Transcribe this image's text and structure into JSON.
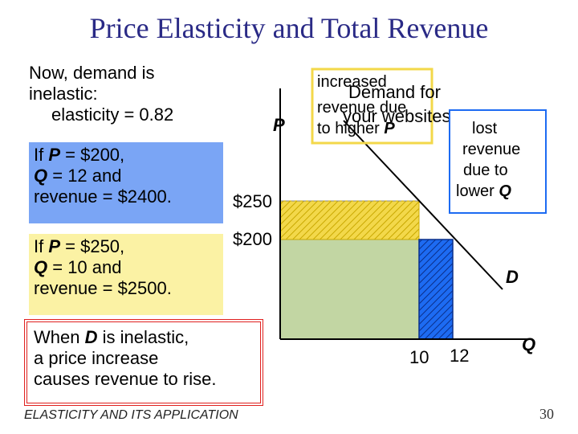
{
  "title": "Price Elasticity and Total Revenue",
  "intro": {
    "line1": "Now, demand is",
    "line2": "inelastic:",
    "line3": "elasticity = 0.82"
  },
  "scenario_low": {
    "line1_a": "If ",
    "line1_p": "P",
    "line1_b": " = $200,",
    "line2_q": "Q",
    "line2_b": " = 12 and",
    "line3": "revenue = $2400."
  },
  "scenario_high": {
    "line1_a": "If ",
    "line1_p": "P",
    "line1_b": " = $250,",
    "line2_q": "Q",
    "line2_b": " = 10 and",
    "line3": "revenue = $2500."
  },
  "conclusion": {
    "line1_a": "When ",
    "line1_d": "D",
    "line1_b": " is inelastic,",
    "line2": "a price increase",
    "line3": "causes revenue to rise."
  },
  "chart": {
    "y_axis_label": "P",
    "x_axis_label": "Q",
    "curve_label": "D",
    "price_high": "$250",
    "price_low": "$200",
    "qty_high": "10",
    "qty_low": "12",
    "curve_title_line1": "Demand for",
    "curve_title_line2": "your websites",
    "gain_label_line1": "increased",
    "gain_label_line2": "revenue due",
    "gain_label_line3_a": "to higher ",
    "gain_label_line3_p": "P",
    "loss_label_line1": "lost",
    "loss_label_line2": "revenue",
    "loss_label_line3": "due to",
    "loss_label_line4_a": "lower ",
    "loss_label_line4_q": "Q"
  },
  "colors": {
    "title": "#2a2a86",
    "scenario_low_bg": "#7aa5f5",
    "scenario_high_bg": "#fbf2a4",
    "conclusion_border": "#e0211f",
    "rect_green": "#c2d6a3",
    "rect_gain": "#f3d84a",
    "rect_loss": "#1d6bf2"
  },
  "footer": "ELASTICITY AND ITS APPLICATION",
  "page_number": "30"
}
